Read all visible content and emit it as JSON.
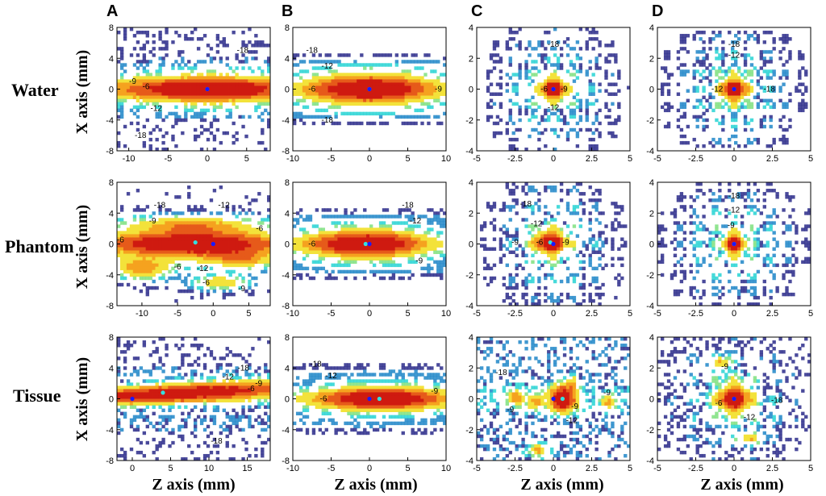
{
  "figure": {
    "column_letters": [
      "A",
      "B",
      "C",
      "D"
    ],
    "row_labels": [
      "Water",
      "Phantom",
      "Tissue"
    ],
    "x_axis_title": "Z axis (mm)",
    "y_axis_title": "X axis (mm)"
  },
  "colors": {
    "levels": [
      "#2a2a8a",
      "#1f86c8",
      "#27d3d3",
      "#7fe07f",
      "#f3e23a",
      "#f5a21f",
      "#e65a1a",
      "#cf1a10"
    ],
    "marker_focus": "#1a1aff",
    "marker_peak": "#35e0e0"
  },
  "chart_data": [
    {
      "panel": "A-Water",
      "type": "contour",
      "row": 0,
      "col": 0,
      "xlim": [
        -11.5,
        8
      ],
      "ylim": [
        -8,
        8
      ],
      "xticks": [
        -10,
        -5,
        0,
        5
      ],
      "yticks": [
        -8,
        -4,
        0,
        4,
        8
      ],
      "peaks": [
        {
          "x": 0,
          "y": 0,
          "sx": 8.5,
          "sy": 1.2,
          "a": 1
        }
      ],
      "focus": {
        "x": 0,
        "y": 0
      },
      "peak_point": {
        "x": 0,
        "y": 0
      },
      "noise": 0.25,
      "contour_labels": [
        {
          "text": "-18",
          "x": 4.5,
          "y": 5
        },
        {
          "text": "-9",
          "x": -9.5,
          "y": 1
        },
        {
          "text": "-6",
          "x": -7.8,
          "y": 0.3
        },
        {
          "text": "-12",
          "x": -6.5,
          "y": -2.5
        },
        {
          "text": "-18",
          "x": -8.5,
          "y": -6
        }
      ]
    },
    {
      "panel": "B-Water",
      "type": "contour",
      "row": 0,
      "col": 1,
      "xlim": [
        -10,
        10
      ],
      "ylim": [
        -8,
        8
      ],
      "xticks": [
        -10,
        -5,
        0,
        5,
        10
      ],
      "yticks": [
        -8,
        -4,
        0,
        4,
        8
      ],
      "peaks": [
        {
          "x": 0,
          "y": 0,
          "sx": 6,
          "sy": 1.4,
          "a": 1
        }
      ],
      "focus": {
        "x": 0,
        "y": 0
      },
      "peak_point": {
        "x": 0,
        "y": 0
      },
      "noise": 0.05,
      "contour_labels": [
        {
          "text": "-18",
          "x": -7.5,
          "y": 5
        },
        {
          "text": "-12",
          "x": -5.5,
          "y": 3
        },
        {
          "text": "-6",
          "x": -7.5,
          "y": 0
        },
        {
          "text": "-9",
          "x": 9,
          "y": 0
        },
        {
          "text": "-18",
          "x": -5.5,
          "y": -4
        }
      ]
    },
    {
      "panel": "C-Water",
      "type": "contour",
      "row": 0,
      "col": 2,
      "xlim": [
        -5,
        5
      ],
      "ylim": [
        -4,
        4
      ],
      "xticks": [
        -5,
        -2.5,
        0,
        2.5,
        5
      ],
      "yticks": [
        -4,
        -2,
        0,
        2,
        4
      ],
      "peaks": [
        {
          "x": 0,
          "y": 0,
          "sx": 0.6,
          "sy": 0.45,
          "a": 1
        }
      ],
      "ripple": {
        "kx": 2.4,
        "ky": 3.2
      },
      "focus": {
        "x": 0,
        "y": 0
      },
      "peak_point": {
        "x": 0,
        "y": 0
      },
      "noise": 0.05,
      "contour_labels": [
        {
          "text": "-18",
          "x": 0,
          "y": 2.9
        },
        {
          "text": "-6",
          "x": -0.6,
          "y": 0
        },
        {
          "text": "-9",
          "x": 0.7,
          "y": 0
        },
        {
          "text": "-12",
          "x": 0,
          "y": -1.2
        }
      ]
    },
    {
      "panel": "D-Water",
      "type": "contour",
      "row": 0,
      "col": 3,
      "xlim": [
        -5,
        5
      ],
      "ylim": [
        -4,
        4
      ],
      "xticks": [
        -5,
        -2.5,
        0,
        2.5,
        5
      ],
      "yticks": [
        -4,
        -2,
        0,
        2,
        4
      ],
      "peaks": [
        {
          "x": 0,
          "y": 0,
          "sx": 0.6,
          "sy": 0.5,
          "a": 1
        }
      ],
      "ripple": {
        "kx": 2.8,
        "ky": 2.8
      },
      "focus": {
        "x": 0,
        "y": 0
      },
      "peak_point": {
        "x": 0,
        "y": 0
      },
      "noise": 0.05,
      "contour_labels": [
        {
          "text": "-18",
          "x": 0,
          "y": 2.9
        },
        {
          "text": "-12",
          "x": 0,
          "y": 2.2
        },
        {
          "text": "-12",
          "x": -1.1,
          "y": 0
        },
        {
          "text": "-18",
          "x": 2.3,
          "y": 0
        }
      ]
    },
    {
      "panel": "A-Phantom",
      "type": "contour",
      "row": 1,
      "col": 0,
      "xlim": [
        -13.5,
        8
      ],
      "ylim": [
        -8,
        8
      ],
      "xticks": [
        -10,
        -5,
        0,
        5
      ],
      "yticks": [
        -8,
        -4,
        0,
        4,
        8
      ],
      "peaks": [
        {
          "x": -3,
          "y": 0,
          "sx": 9,
          "sy": 1.3,
          "a": 1
        },
        {
          "x": -10,
          "y": -3.2,
          "sx": 2.5,
          "sy": 0.9,
          "a": 0.5
        },
        {
          "x": 1,
          "y": -5,
          "sx": 2.5,
          "sy": 0.6,
          "a": 0.45
        },
        {
          "x": -3,
          "y": 2.5,
          "sx": 6,
          "sy": 0.7,
          "a": 0.4
        },
        {
          "x": 4,
          "y": -2,
          "sx": 3,
          "sy": 0.7,
          "a": 0.4
        }
      ],
      "focus": {
        "x": 0,
        "y": 0
      },
      "peak_point": {
        "x": -2.5,
        "y": 0.2
      },
      "noise": 0.15,
      "contour_labels": [
        {
          "text": "-18",
          "x": -7.5,
          "y": 5
        },
        {
          "text": "-12",
          "x": 1.5,
          "y": 5
        },
        {
          "text": "-9",
          "x": -8.5,
          "y": 3
        },
        {
          "text": "-6",
          "x": -13,
          "y": 0.5
        },
        {
          "text": "-6",
          "x": 6.5,
          "y": 2
        },
        {
          "text": "-6",
          "x": -5,
          "y": -3
        },
        {
          "text": "-12",
          "x": -1.5,
          "y": -3.2
        },
        {
          "text": "-6",
          "x": -1,
          "y": -5
        },
        {
          "text": "-9",
          "x": 4,
          "y": -5.8
        }
      ]
    },
    {
      "panel": "B-Phantom",
      "type": "contour",
      "row": 1,
      "col": 1,
      "xlim": [
        -10,
        10
      ],
      "ylim": [
        -8,
        8
      ],
      "xticks": [
        -10,
        -5,
        0,
        5,
        10
      ],
      "yticks": [
        -8,
        -4,
        0,
        4,
        8
      ],
      "peaks": [
        {
          "x": -0.5,
          "y": 0,
          "sx": 5.5,
          "sy": 1.3,
          "a": 1
        }
      ],
      "focus": {
        "x": 0,
        "y": 0
      },
      "peak_point": {
        "x": -0.5,
        "y": 0
      },
      "noise": 0.08,
      "contour_labels": [
        {
          "text": "-18",
          "x": 5,
          "y": 5
        },
        {
          "text": "-12",
          "x": 6,
          "y": 3
        },
        {
          "text": "-6",
          "x": -7.5,
          "y": 0
        },
        {
          "text": "-9",
          "x": 6.5,
          "y": -2.2
        }
      ]
    },
    {
      "panel": "C-Phantom",
      "type": "contour",
      "row": 1,
      "col": 2,
      "xlim": [
        -5,
        5
      ],
      "ylim": [
        -4,
        4
      ],
      "xticks": [
        -5,
        -2.5,
        0,
        2.5,
        5
      ],
      "yticks": [
        -4,
        -2,
        0,
        2,
        4
      ],
      "peaks": [
        {
          "x": -0.2,
          "y": 0.1,
          "sx": 0.7,
          "sy": 0.5,
          "a": 1
        }
      ],
      "ripple": {
        "kx": 2.2,
        "ky": 2.6
      },
      "focus": {
        "x": 0,
        "y": 0
      },
      "peak_point": {
        "x": -0.2,
        "y": 0.1
      },
      "noise": 0.08,
      "contour_labels": [
        {
          "text": "-18",
          "x": -1.8,
          "y": 2.6
        },
        {
          "text": "-12",
          "x": -1.1,
          "y": 1.3
        },
        {
          "text": "-9",
          "x": -2.5,
          "y": 0.1
        },
        {
          "text": "-6",
          "x": -0.9,
          "y": 0.1
        },
        {
          "text": "-9",
          "x": 0.8,
          "y": 0.1
        }
      ]
    },
    {
      "panel": "D-Phantom",
      "type": "contour",
      "row": 1,
      "col": 3,
      "xlim": [
        -5,
        5
      ],
      "ylim": [
        -4,
        4
      ],
      "xticks": [
        -5,
        -2.5,
        0,
        2.5,
        5
      ],
      "yticks": [
        -4,
        -2,
        0,
        2,
        4
      ],
      "peaks": [
        {
          "x": 0,
          "y": 0,
          "sx": 0.45,
          "sy": 0.45,
          "a": 1
        }
      ],
      "ripple": {
        "kx": 2.6,
        "ky": 3
      },
      "focus": {
        "x": 0,
        "y": 0
      },
      "peak_point": {
        "x": 0,
        "y": 0
      },
      "noise": 0.06,
      "contour_labels": [
        {
          "text": "-18",
          "x": 0,
          "y": 3.1
        },
        {
          "text": "-12",
          "x": 0,
          "y": 2.2
        },
        {
          "text": "-9",
          "x": -0.2,
          "y": 1.2
        }
      ]
    },
    {
      "panel": "A-Tissue",
      "type": "contour",
      "row": 2,
      "col": 0,
      "xlim": [
        -2,
        18
      ],
      "ylim": [
        -8,
        8
      ],
      "xticks": [
        0,
        5,
        10,
        15
      ],
      "yticks": [
        -8,
        -4,
        0,
        4,
        8
      ],
      "peaks": [
        {
          "x": 7,
          "y": 0.8,
          "sx": 11,
          "sy": 0.8,
          "a": 1,
          "tilt": 0.05
        }
      ],
      "focus": {
        "x": 0,
        "y": 0
      },
      "peak_point": {
        "x": 4,
        "y": 0.8
      },
      "noise": 0.35,
      "contour_labels": [
        {
          "text": "-18",
          "x": 14.5,
          "y": 4
        },
        {
          "text": "-12",
          "x": 12.5,
          "y": 2.8
        },
        {
          "text": "-9",
          "x": 16.5,
          "y": 2
        },
        {
          "text": "-6",
          "x": 15.5,
          "y": 1.3
        },
        {
          "text": "-18",
          "x": 11,
          "y": -5.5
        }
      ]
    },
    {
      "panel": "B-Tissue",
      "type": "contour",
      "row": 2,
      "col": 1,
      "xlim": [
        -10,
        10
      ],
      "ylim": [
        -8,
        8
      ],
      "xticks": [
        -10,
        -5,
        0,
        5,
        10
      ],
      "yticks": [
        -8,
        -4,
        0,
        4,
        8
      ],
      "peaks": [
        {
          "x": 1.5,
          "y": 0,
          "sx": 6,
          "sy": 1.1,
          "a": 1
        }
      ],
      "focus": {
        "x": 0,
        "y": 0
      },
      "peak_point": {
        "x": 1.3,
        "y": 0
      },
      "noise": 0.1,
      "contour_labels": [
        {
          "text": "-18",
          "x": -7,
          "y": 4.5
        },
        {
          "text": "-12",
          "x": -5,
          "y": 3
        },
        {
          "text": "-6",
          "x": -6,
          "y": 0
        },
        {
          "text": "-9",
          "x": 8.5,
          "y": 1
        }
      ]
    },
    {
      "panel": "C-Tissue",
      "type": "contour",
      "row": 2,
      "col": 2,
      "xlim": [
        -5,
        5
      ],
      "ylim": [
        -4,
        4
      ],
      "xticks": [
        -5,
        -2.5,
        0,
        2.5,
        5
      ],
      "yticks": [
        -4,
        -2,
        0,
        2,
        4
      ],
      "peaks": [
        {
          "x": 0.6,
          "y": 0,
          "sx": 0.6,
          "sy": 0.6,
          "a": 1
        },
        {
          "x": -2.4,
          "y": 0.1,
          "sx": 0.35,
          "sy": 0.35,
          "a": 0.45
        },
        {
          "x": -1.2,
          "y": -0.2,
          "sx": 0.35,
          "sy": 0.35,
          "a": 0.4
        },
        {
          "x": -1,
          "y": -3.3,
          "sx": 0.4,
          "sy": 0.3,
          "a": 0.45
        },
        {
          "x": 3.6,
          "y": -0.2,
          "sx": 0.3,
          "sy": 0.3,
          "a": 0.4
        },
        {
          "x": 1.2,
          "y": 1.1,
          "sx": 0.3,
          "sy": 0.3,
          "a": 0.35
        }
      ],
      "focus": {
        "x": 0,
        "y": 0
      },
      "peak_point": {
        "x": 0.6,
        "y": 0
      },
      "noise": 0.45,
      "contour_labels": [
        {
          "text": "-18",
          "x": -3.4,
          "y": 1.7
        },
        {
          "text": "-9",
          "x": -2.8,
          "y": -0.7
        },
        {
          "text": "-9",
          "x": 3.5,
          "y": 0.4
        },
        {
          "text": "-9",
          "x": 1.4,
          "y": -0.5
        },
        {
          "text": "-12",
          "x": 1.2,
          "y": -1.4
        }
      ]
    },
    {
      "panel": "D-Tissue",
      "type": "contour",
      "row": 2,
      "col": 3,
      "xlim": [
        -5,
        5
      ],
      "ylim": [
        -4,
        4
      ],
      "xticks": [
        -5,
        -2.5,
        0,
        2.5,
        5
      ],
      "yticks": [
        -4,
        -2,
        0,
        2,
        4
      ],
      "peaks": [
        {
          "x": 0,
          "y": 0,
          "sx": 0.7,
          "sy": 0.6,
          "a": 1
        },
        {
          "x": -0.8,
          "y": 2.3,
          "sx": 0.4,
          "sy": 0.3,
          "a": 0.45
        },
        {
          "x": 1,
          "y": -2.5,
          "sx": 0.5,
          "sy": 0.3,
          "a": 0.4
        }
      ],
      "ripple": {
        "kx": 2.3,
        "ky": 2.3
      },
      "focus": {
        "x": 0,
        "y": 0
      },
      "peak_point": {
        "x": 0,
        "y": 0
      },
      "noise": 0.2,
      "contour_labels": [
        {
          "text": "-9",
          "x": -0.6,
          "y": 2.1
        },
        {
          "text": "-18",
          "x": 2.8,
          "y": -0.1
        },
        {
          "text": "-6",
          "x": -1,
          "y": -0.3
        },
        {
          "text": "-12",
          "x": 1,
          "y": -1.2
        }
      ]
    }
  ]
}
